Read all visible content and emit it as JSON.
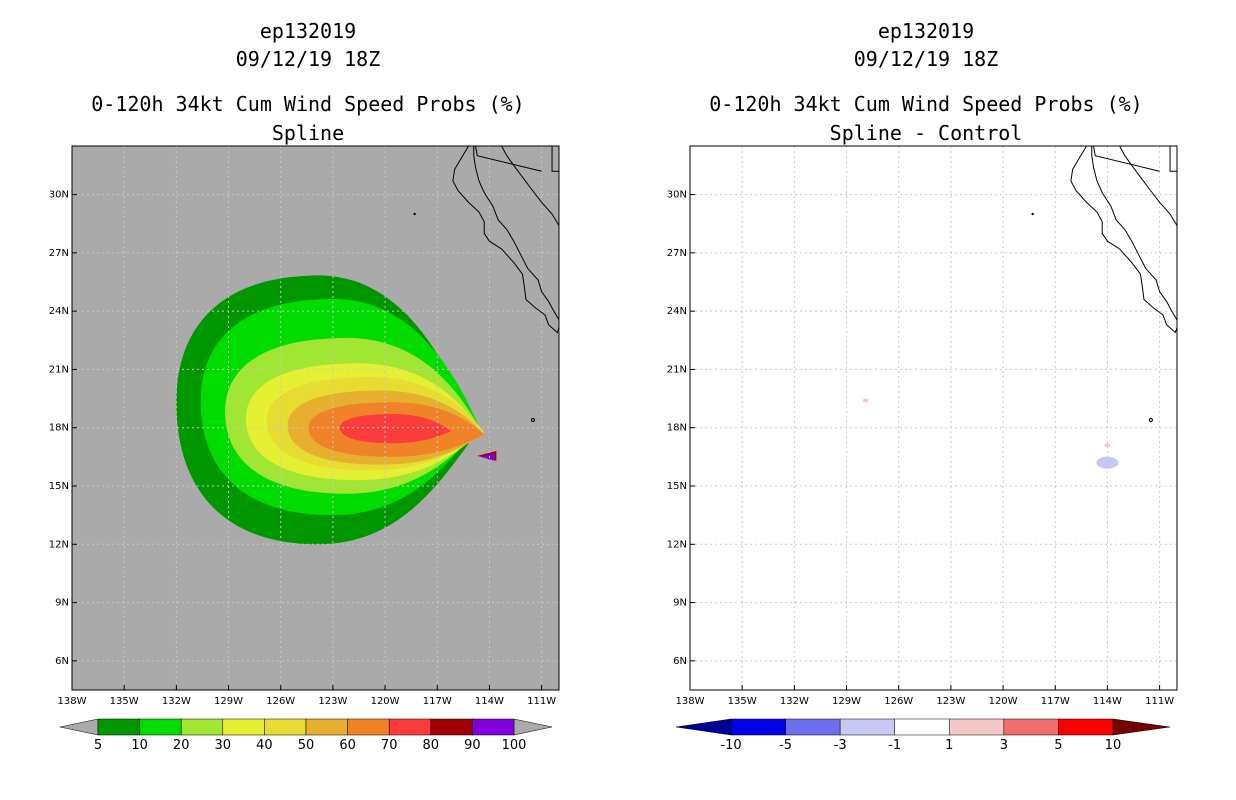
{
  "chart_data": [
    {
      "type": "filled-contour-map",
      "storm_id": "ep132019",
      "datetime": "09/12/19 18Z",
      "title": "0-120h 34kt Cum Wind Speed Probs (%)",
      "subtitle": "Spline",
      "xlim": [
        -138,
        -110
      ],
      "ylim": [
        4.5,
        32.5
      ],
      "x_ticks": [
        {
          "value": -138,
          "label": "138W"
        },
        {
          "value": -135,
          "label": "135W"
        },
        {
          "value": -132,
          "label": "132W"
        },
        {
          "value": -129,
          "label": "129W"
        },
        {
          "value": -126,
          "label": "126W"
        },
        {
          "value": -123,
          "label": "123W"
        },
        {
          "value": -120,
          "label": "120W"
        },
        {
          "value": -117,
          "label": "117W"
        },
        {
          "value": -114,
          "label": "114W"
        },
        {
          "value": -111,
          "label": "111W"
        }
      ],
      "y_ticks": [
        {
          "value": 6,
          "label": "6N"
        },
        {
          "value": 9,
          "label": "9N"
        },
        {
          "value": 12,
          "label": "12N"
        },
        {
          "value": 15,
          "label": "15N"
        },
        {
          "value": 18,
          "label": "18N"
        },
        {
          "value": 21,
          "label": "21N"
        },
        {
          "value": 24,
          "label": "24N"
        },
        {
          "value": 27,
          "label": "27N"
        },
        {
          "value": 30,
          "label": "30N"
        }
      ],
      "grid": true,
      "background_color": "#aaaaaa",
      "colorbar": {
        "labels": [
          "5",
          "10",
          "20",
          "30",
          "40",
          "50",
          "60",
          "70",
          "80",
          "90",
          "100"
        ],
        "colors": [
          "#009600",
          "#00dc00",
          "#a0e632",
          "#e6f032",
          "#e6dc32",
          "#e6af2d",
          "#f08228",
          "#fa3c3c",
          "#a00000",
          "#8200dc"
        ],
        "under_color": "#aaaaaa",
        "over_color": "#aaaaaa"
      },
      "contour_levels": [
        {
          "level": 5,
          "color": "#009600",
          "bounds": {
            "lon_min": -132.0,
            "lon_max": -114.8,
            "lat_min": 12.0,
            "lat_max": 25.8
          }
        },
        {
          "level": 10,
          "color": "#00dc00",
          "bounds": {
            "lon_min": -130.6,
            "lon_max": -114.6,
            "lat_min": 13.5,
            "lat_max": 24.6
          }
        },
        {
          "level": 20,
          "color": "#a0e632",
          "bounds": {
            "lon_min": -129.2,
            "lon_max": -114.5,
            "lat_min": 14.6,
            "lat_max": 22.6
          }
        },
        {
          "level": 30,
          "color": "#e6f032",
          "bounds": {
            "lon_min": -128.0,
            "lon_max": -114.4,
            "lat_min": 15.3,
            "lat_max": 21.3
          }
        },
        {
          "level": 40,
          "color": "#e6dc32",
          "bounds": {
            "lon_min": -126.8,
            "lon_max": -114.3,
            "lat_min": 15.8,
            "lat_max": 20.6
          }
        },
        {
          "level": 50,
          "color": "#e6af2d",
          "bounds": {
            "lon_min": -125.6,
            "lon_max": -114.3,
            "lat_min": 16.1,
            "lat_max": 19.9
          }
        },
        {
          "level": 60,
          "color": "#f08228",
          "bounds": {
            "lon_min": -124.4,
            "lon_max": -114.3,
            "lat_min": 16.5,
            "lat_max": 19.3
          }
        },
        {
          "level": 70,
          "color": "#fa3c3c",
          "bounds": {
            "lon_min": -122.6,
            "lon_max": -116.2,
            "lat_min": 17.2,
            "lat_max": 18.7
          }
        },
        {
          "level": 80,
          "color": "#a00000",
          "bounds": {
            "lon_min": -114.7,
            "lon_max": -113.6,
            "lat_min": 16.3,
            "lat_max": 16.8
          }
        },
        {
          "level": 90,
          "color": "#8200dc",
          "bounds": {
            "lon_min": -114.5,
            "lon_max": -113.7,
            "lat_min": 16.3,
            "lat_max": 16.7
          }
        }
      ]
    },
    {
      "type": "filled-contour-map",
      "storm_id": "ep132019",
      "datetime": "09/12/19 18Z",
      "title": "0-120h 34kt Cum Wind Speed Probs (%)",
      "subtitle": "Spline - Control",
      "xlim": [
        -138,
        -110
      ],
      "ylim": [
        4.5,
        32.5
      ],
      "x_ticks": [
        {
          "value": -138,
          "label": "138W"
        },
        {
          "value": -135,
          "label": "135W"
        },
        {
          "value": -132,
          "label": "132W"
        },
        {
          "value": -129,
          "label": "129W"
        },
        {
          "value": -126,
          "label": "126W"
        },
        {
          "value": -123,
          "label": "123W"
        },
        {
          "value": -120,
          "label": "120W"
        },
        {
          "value": -117,
          "label": "117W"
        },
        {
          "value": -114,
          "label": "114W"
        },
        {
          "value": -111,
          "label": "111W"
        }
      ],
      "y_ticks": [
        {
          "value": 6,
          "label": "6N"
        },
        {
          "value": 9,
          "label": "9N"
        },
        {
          "value": 12,
          "label": "12N"
        },
        {
          "value": 15,
          "label": "15N"
        },
        {
          "value": 18,
          "label": "18N"
        },
        {
          "value": 21,
          "label": "21N"
        },
        {
          "value": 24,
          "label": "24N"
        },
        {
          "value": 27,
          "label": "27N"
        },
        {
          "value": 30,
          "label": "30N"
        }
      ],
      "grid": true,
      "background_color": "#ffffff",
      "colorbar": {
        "labels": [
          "-10",
          "-5",
          "-3",
          "-1",
          "1",
          "3",
          "5",
          "10"
        ],
        "colors": [
          "#0000e6",
          "#6e6ef0",
          "#c8c8f5",
          "#ffffff",
          "#f5c8c8",
          "#f06e6e",
          "#ff0000"
        ],
        "under_color": "#000096",
        "over_color": "#780000"
      },
      "anomalies": [
        {
          "value": -2,
          "color": "#c8c8f5",
          "lon": -114.0,
          "lat": 16.2
        },
        {
          "value": 2,
          "color": "#f5c8c8",
          "lon": -127.9,
          "lat": 19.4
        },
        {
          "value": 2,
          "color": "#f5c8c8",
          "lon": -114.0,
          "lat": 17.1
        }
      ]
    }
  ]
}
